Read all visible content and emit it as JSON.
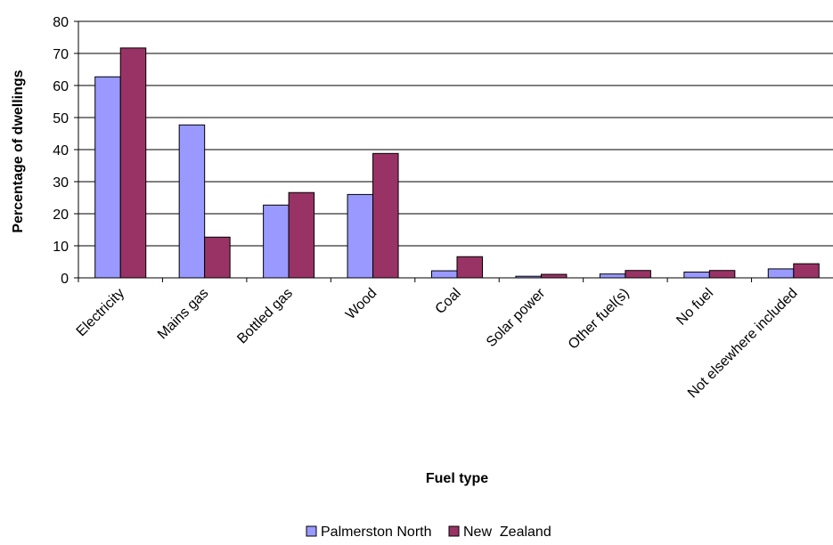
{
  "chart_data": {
    "type": "bar",
    "title": "",
    "xlabel": "Fuel type",
    "ylabel": "Percentage of dwellings",
    "ylim": [
      0,
      80
    ],
    "yticks": [
      0,
      10,
      20,
      30,
      40,
      50,
      60,
      70,
      80
    ],
    "grid": true,
    "legend_position": "bottom",
    "categories": [
      "Electricity",
      "Mains gas",
      "Bottled gas",
      "Wood",
      "Coal",
      "Solar power",
      "Other fuel(s)",
      "No fuel",
      "Not elsewhere included"
    ],
    "series": [
      {
        "name": "Palmerston North",
        "color": "#9999ff",
        "values": [
          62.7,
          47.7,
          22.7,
          26.0,
          2.2,
          0.5,
          1.2,
          1.8,
          2.8
        ]
      },
      {
        "name": "New  Zealand",
        "color": "#993366",
        "values": [
          71.7,
          12.7,
          26.6,
          38.8,
          6.6,
          1.1,
          2.3,
          2.3,
          4.4
        ]
      }
    ]
  }
}
